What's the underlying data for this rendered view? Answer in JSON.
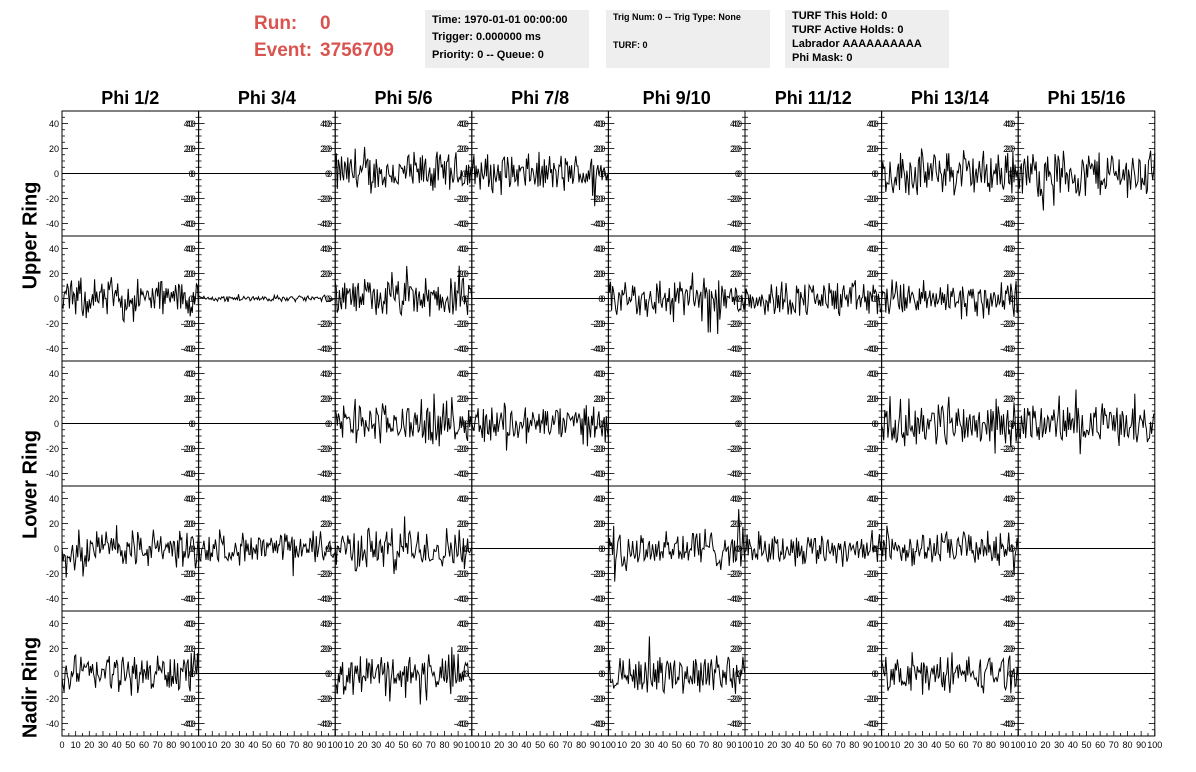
{
  "header": {
    "run_label": "Run:",
    "run_value": "0",
    "event_label": "Event:",
    "event_value": "3756709"
  },
  "info_box_1": {
    "time": "Time: 1970-01-01 00:00:00",
    "trigger": "Trigger: 0.000000 ms",
    "priority": "Priority: 0 -- Queue: 0"
  },
  "info_box_2": {
    "trig": "Trig Num: 0 -- Trig Type: None",
    "turf": "TURF: 0"
  },
  "info_box_3": {
    "hold": "TURF This Hold: 0",
    "active": "TURF Active Holds: 0",
    "labrador": "Labrador AAAAAAAAAA",
    "mask": "Phi Mask: 0"
  },
  "row_labels": [
    "Upper Ring",
    "Lower Ring",
    "Nadir Ring"
  ],
  "chart_data": {
    "type": "line",
    "columns": [
      "Phi 1/2",
      "Phi 3/4",
      "Phi 5/6",
      "Phi 7/8",
      "Phi 9/10",
      "Phi 11/12",
      "Phi 13/14",
      "Phi 15/16"
    ],
    "xlim": [
      0,
      100
    ],
    "ylim": [
      -50,
      50
    ],
    "x_tick_labels": [
      "0",
      "10",
      "20",
      "30",
      "40",
      "50",
      "60",
      "70",
      "80",
      "90",
      "100"
    ],
    "y_tick_labels": [
      "40",
      "20",
      "0",
      "-20",
      "-40"
    ],
    "panels": [
      [
        {
          "noise": 0
        },
        {
          "noise": 0
        },
        {
          "noise": 14
        },
        {
          "noise": 13
        },
        {
          "noise": 0
        },
        {
          "noise": 0
        },
        {
          "noise": 15
        },
        {
          "noise": 16
        }
      ],
      [
        {
          "noise": 13
        },
        {
          "noise": 2
        },
        {
          "noise": 13
        },
        {
          "noise": 0
        },
        {
          "noise": 14
        },
        {
          "noise": 12
        },
        {
          "noise": 12
        },
        {
          "noise": 0
        }
      ],
      [
        {
          "noise": 0
        },
        {
          "noise": 0
        },
        {
          "noise": 14
        },
        {
          "noise": 13
        },
        {
          "noise": 0
        },
        {
          "noise": 0
        },
        {
          "noise": 15
        },
        {
          "noise": 13
        }
      ],
      [
        {
          "noise": 13
        },
        {
          "noise": 10
        },
        {
          "noise": 14
        },
        {
          "noise": 0
        },
        {
          "noise": 14
        },
        {
          "noise": 11
        },
        {
          "noise": 11
        },
        {
          "noise": 0
        }
      ],
      [
        {
          "noise": 13
        },
        {
          "noise": 0
        },
        {
          "noise": 13
        },
        {
          "noise": 0
        },
        {
          "noise": 13
        },
        {
          "noise": 0
        },
        {
          "noise": 12
        },
        {
          "noise": 0
        }
      ]
    ]
  }
}
